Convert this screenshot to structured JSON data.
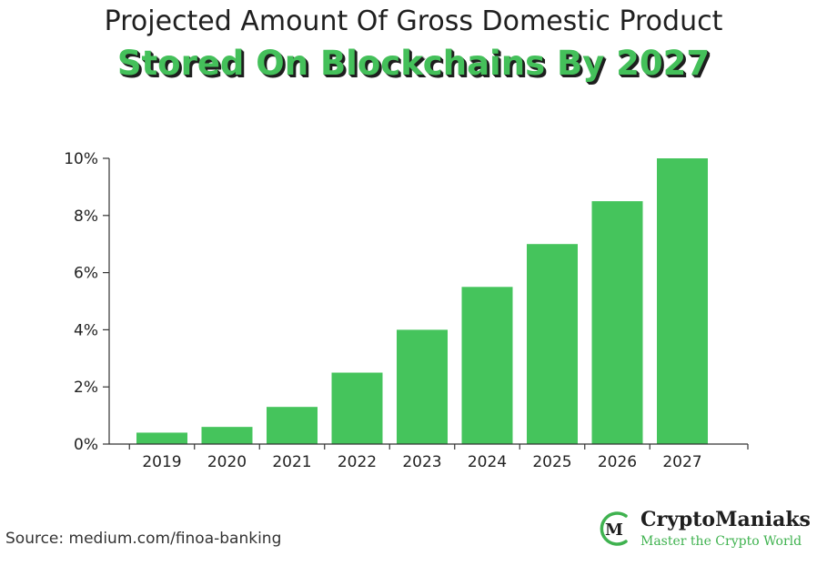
{
  "header": {
    "title_line1": "Projected Amount Of Gross Domestic Product",
    "title_line2": "Stored On Blockchains By 2027"
  },
  "chart_data": {
    "type": "bar",
    "title": "Projected Amount Of Gross Domestic Product Stored On Blockchains By 2027",
    "xlabel": "",
    "ylabel": "",
    "categories": [
      "2019",
      "2020",
      "2021",
      "2022",
      "2023",
      "2024",
      "2025",
      "2026",
      "2027"
    ],
    "values": [
      0.4,
      0.6,
      1.3,
      2.5,
      4.0,
      5.5,
      7.0,
      8.5,
      10.0
    ],
    "ylim": [
      0,
      10
    ],
    "yticks": [
      0,
      2,
      4,
      6,
      8,
      10
    ],
    "ytick_labels": [
      "0%",
      "2%",
      "4%",
      "6%",
      "8%",
      "10%"
    ],
    "grid": false,
    "legend": "none",
    "bar_color": "#45c45c",
    "axis_color": "#333333"
  },
  "footer": {
    "source": "Source: medium.com/finoa-banking",
    "brand_name": "CryptoManiaks",
    "brand_tagline": "Master the Crypto World",
    "brand_logo_letter": "M",
    "brand_color": "#3fb24f",
    "logo_icon": "cryptomaniaks-logo-icon"
  }
}
